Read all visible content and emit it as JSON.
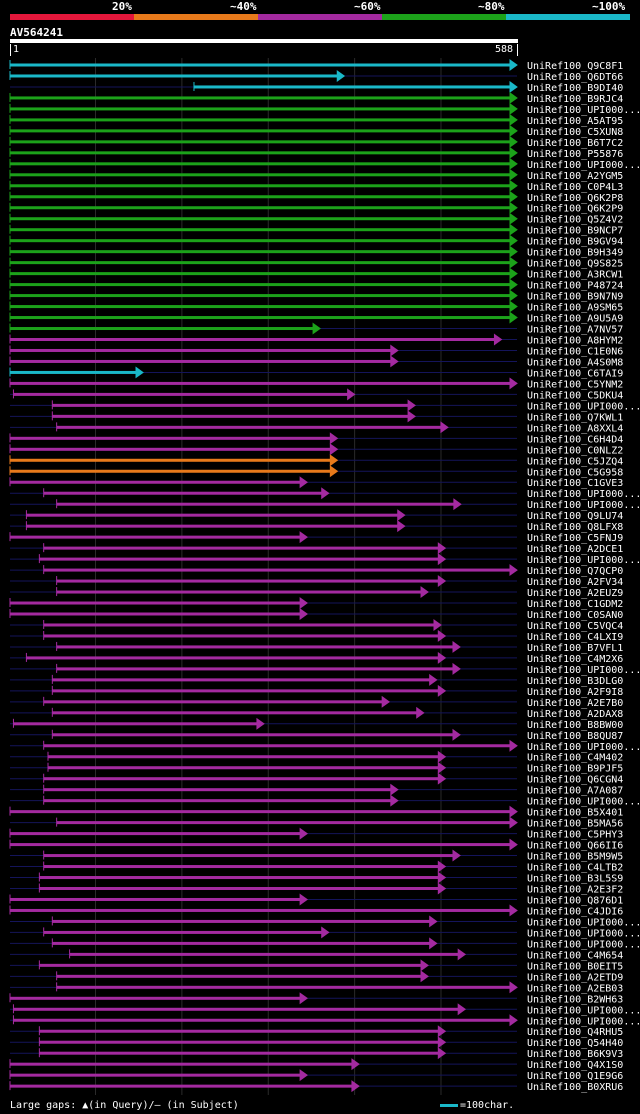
{
  "header": {
    "legend": [
      {
        "label": "20%",
        "color": "#e4173b"
      },
      {
        "label": "~40%",
        "color": "#e87a1b"
      },
      {
        "label": "~60%",
        "color": "#a42aa0"
      },
      {
        "label": "~80%",
        "color": "#1ca21a"
      },
      {
        "label": "~100%",
        "color": "#1ab8c8"
      }
    ],
    "query_name": "AV564241",
    "query_start": "1",
    "query_end": "588"
  },
  "chart_data": {
    "type": "alignment",
    "query_length": 588,
    "hits": [
      {
        "name": "UniRef100_Q9C8F1",
        "start": 1,
        "end": 588,
        "cls": "c"
      },
      {
        "name": "UniRef100_Q6DT66",
        "start": 1,
        "end": 388,
        "cls": "c"
      },
      {
        "name": "UniRef100_B9DI40",
        "start": 214,
        "end": 588,
        "cls": "c"
      },
      {
        "name": "UniRef100_B9RJC4",
        "start": 1,
        "end": 588,
        "cls": "g"
      },
      {
        "name": "UniRef100_UPI000...",
        "start": 1,
        "end": 588,
        "cls": "g"
      },
      {
        "name": "UniRef100_A5AT95",
        "start": 1,
        "end": 588,
        "cls": "g"
      },
      {
        "name": "UniRef100_C5XUN8",
        "start": 1,
        "end": 588,
        "cls": "g"
      },
      {
        "name": "UniRef100_B6T7C2",
        "start": 1,
        "end": 588,
        "cls": "g"
      },
      {
        "name": "UniRef100_P55876",
        "start": 1,
        "end": 588,
        "cls": "g"
      },
      {
        "name": "UniRef100_UPI000...",
        "start": 1,
        "end": 588,
        "cls": "g"
      },
      {
        "name": "UniRef100_A2YGM5",
        "start": 1,
        "end": 588,
        "cls": "g"
      },
      {
        "name": "UniRef100_C0P4L3",
        "start": 1,
        "end": 588,
        "cls": "g"
      },
      {
        "name": "UniRef100_Q6K2P8",
        "start": 1,
        "end": 588,
        "cls": "g"
      },
      {
        "name": "UniRef100_Q6K2P9",
        "start": 1,
        "end": 588,
        "cls": "g"
      },
      {
        "name": "UniRef100_Q5Z4V2",
        "start": 1,
        "end": 588,
        "cls": "g"
      },
      {
        "name": "UniRef100_B9NCP7",
        "start": 1,
        "end": 588,
        "cls": "g"
      },
      {
        "name": "UniRef100_B9GV94",
        "start": 1,
        "end": 588,
        "cls": "g"
      },
      {
        "name": "UniRef100_B9H349",
        "start": 1,
        "end": 588,
        "cls": "g"
      },
      {
        "name": "UniRef100_Q9S825",
        "start": 1,
        "end": 588,
        "cls": "g"
      },
      {
        "name": "UniRef100_A3RCW1",
        "start": 1,
        "end": 588,
        "cls": "g"
      },
      {
        "name": "UniRef100_P48724",
        "start": 1,
        "end": 588,
        "cls": "g"
      },
      {
        "name": "UniRef100_B9N7N9",
        "start": 1,
        "end": 588,
        "cls": "g"
      },
      {
        "name": "UniRef100_A9SM65",
        "start": 1,
        "end": 588,
        "cls": "g"
      },
      {
        "name": "UniRef100_A9U5A9",
        "start": 1,
        "end": 588,
        "cls": "g"
      },
      {
        "name": "UniRef100_A7NV57",
        "start": 1,
        "end": 360,
        "cls": "g"
      },
      {
        "name": "UniRef100_A8HYM2",
        "start": 1,
        "end": 570,
        "cls": "m"
      },
      {
        "name": "UniRef100_C1E0N6",
        "start": 1,
        "end": 450,
        "cls": "m"
      },
      {
        "name": "UniRef100_A4S0M8",
        "start": 1,
        "end": 450,
        "cls": "m"
      },
      {
        "name": "UniRef100_C6TAI9",
        "start": 1,
        "end": 155,
        "cls": "c"
      },
      {
        "name": "UniRef100_C5YNM2",
        "start": 1,
        "end": 588,
        "cls": "m"
      },
      {
        "name": "UniRef100_C5DKU4",
        "start": 5,
        "end": 400,
        "cls": "m"
      },
      {
        "name": "UniRef100_UPI000...",
        "start": 50,
        "end": 470,
        "cls": "m"
      },
      {
        "name": "UniRef100_Q7KWL1",
        "start": 50,
        "end": 470,
        "cls": "m"
      },
      {
        "name": "UniRef100_A8XXL4",
        "start": 55,
        "end": 508,
        "cls": "m"
      },
      {
        "name": "UniRef100_C6H4D4",
        "start": 1,
        "end": 380,
        "cls": "m"
      },
      {
        "name": "UniRef100_C0NLZ2",
        "start": 1,
        "end": 380,
        "cls": "m"
      },
      {
        "name": "UniRef100_C5JZQ4",
        "start": 1,
        "end": 380,
        "cls": "o"
      },
      {
        "name": "UniRef100_C5G958",
        "start": 1,
        "end": 380,
        "cls": "o"
      },
      {
        "name": "UniRef100_C1GVE3",
        "start": 1,
        "end": 345,
        "cls": "m"
      },
      {
        "name": "UniRef100_UPI000...",
        "start": 40,
        "end": 370,
        "cls": "m"
      },
      {
        "name": "UniRef100_UPI000...",
        "start": 55,
        "end": 523,
        "cls": "m"
      },
      {
        "name": "UniRef100_Q9LU74",
        "start": 20,
        "end": 458,
        "cls": "m"
      },
      {
        "name": "UniRef100_Q8LFX8",
        "start": 20,
        "end": 458,
        "cls": "m"
      },
      {
        "name": "UniRef100_C5FNJ9",
        "start": 1,
        "end": 345,
        "cls": "m"
      },
      {
        "name": "UniRef100_A2DCE1",
        "start": 40,
        "end": 505,
        "cls": "m"
      },
      {
        "name": "UniRef100_UPI000...",
        "start": 35,
        "end": 505,
        "cls": "m"
      },
      {
        "name": "UniRef100_Q7QCP0",
        "start": 40,
        "end": 588,
        "cls": "m"
      },
      {
        "name": "UniRef100_A2FV34",
        "start": 55,
        "end": 505,
        "cls": "m"
      },
      {
        "name": "UniRef100_A2EUZ9",
        "start": 55,
        "end": 485,
        "cls": "m"
      },
      {
        "name": "UniRef100_C1GDM2",
        "start": 1,
        "end": 345,
        "cls": "m"
      },
      {
        "name": "UniRef100_C0SAN0",
        "start": 1,
        "end": 345,
        "cls": "m"
      },
      {
        "name": "UniRef100_C5VQC4",
        "start": 40,
        "end": 500,
        "cls": "m"
      },
      {
        "name": "UniRef100_C4LXI9",
        "start": 40,
        "end": 505,
        "cls": "m"
      },
      {
        "name": "UniRef100_B7VFL1",
        "start": 55,
        "end": 522,
        "cls": "m"
      },
      {
        "name": "UniRef100_C4M2X6",
        "start": 20,
        "end": 505,
        "cls": "m"
      },
      {
        "name": "UniRef100_UPI000...",
        "start": 55,
        "end": 522,
        "cls": "m"
      },
      {
        "name": "UniRef100_B3DLG0",
        "start": 50,
        "end": 495,
        "cls": "m"
      },
      {
        "name": "UniRef100_A2F9I8",
        "start": 50,
        "end": 505,
        "cls": "m"
      },
      {
        "name": "UniRef100_A2E7B0",
        "start": 40,
        "end": 440,
        "cls": "m"
      },
      {
        "name": "UniRef100_A2DAX8",
        "start": 50,
        "end": 480,
        "cls": "m"
      },
      {
        "name": "UniRef100_B8BW00",
        "start": 5,
        "end": 295,
        "cls": "m"
      },
      {
        "name": "UniRef100_B8QU87",
        "start": 50,
        "end": 522,
        "cls": "m"
      },
      {
        "name": "UniRef100_UPI000...",
        "start": 40,
        "end": 588,
        "cls": "m"
      },
      {
        "name": "UniRef100_C4M402",
        "start": 45,
        "end": 505,
        "cls": "m"
      },
      {
        "name": "UniRef100_B9PJF5",
        "start": 45,
        "end": 505,
        "cls": "m"
      },
      {
        "name": "UniRef100_Q6CGN4",
        "start": 40,
        "end": 505,
        "cls": "m"
      },
      {
        "name": "UniRef100_A7A087",
        "start": 40,
        "end": 450,
        "cls": "m"
      },
      {
        "name": "UniRef100_UPI000...",
        "start": 40,
        "end": 450,
        "cls": "m"
      },
      {
        "name": "UniRef100_B5X401",
        "start": 1,
        "end": 588,
        "cls": "m"
      },
      {
        "name": "UniRef100_B5MA56",
        "start": 55,
        "end": 588,
        "cls": "m"
      },
      {
        "name": "UniRef100_C5PHY3",
        "start": 1,
        "end": 345,
        "cls": "m"
      },
      {
        "name": "UniRef100_Q66II6",
        "start": 1,
        "end": 588,
        "cls": "m"
      },
      {
        "name": "UniRef100_B5M9W5",
        "start": 40,
        "end": 522,
        "cls": "m"
      },
      {
        "name": "UniRef100_C4LTB2",
        "start": 40,
        "end": 505,
        "cls": "m"
      },
      {
        "name": "UniRef100_B3L5S9",
        "start": 35,
        "end": 505,
        "cls": "m"
      },
      {
        "name": "UniRef100_A2E3F2",
        "start": 35,
        "end": 505,
        "cls": "m"
      },
      {
        "name": "UniRef100_Q876D1",
        "start": 1,
        "end": 345,
        "cls": "m"
      },
      {
        "name": "UniRef100_C4JDI6",
        "start": 1,
        "end": 588,
        "cls": "m"
      },
      {
        "name": "UniRef100_UPI000...",
        "start": 50,
        "end": 495,
        "cls": "m"
      },
      {
        "name": "UniRef100_UPI000...",
        "start": 40,
        "end": 370,
        "cls": "m"
      },
      {
        "name": "UniRef100_UPI000...",
        "start": 50,
        "end": 495,
        "cls": "m"
      },
      {
        "name": "UniRef100_C4M654",
        "start": 70,
        "end": 528,
        "cls": "m"
      },
      {
        "name": "UniRef100_B0EIT5",
        "start": 35,
        "end": 485,
        "cls": "m"
      },
      {
        "name": "UniRef100_A2ETD9",
        "start": 55,
        "end": 485,
        "cls": "m"
      },
      {
        "name": "UniRef100_A2EB03",
        "start": 55,
        "end": 588,
        "cls": "m"
      },
      {
        "name": "UniRef100_B2WH63",
        "start": 1,
        "end": 345,
        "cls": "m"
      },
      {
        "name": "UniRef100_UPI000...",
        "start": 5,
        "end": 528,
        "cls": "m"
      },
      {
        "name": "UniRef100_UPI000...",
        "start": 5,
        "end": 588,
        "cls": "m"
      },
      {
        "name": "UniRef100_Q4RHU5",
        "start": 35,
        "end": 505,
        "cls": "m"
      },
      {
        "name": "UniRef100_Q54H40",
        "start": 35,
        "end": 505,
        "cls": "m"
      },
      {
        "name": "UniRef100_B6K9V3",
        "start": 35,
        "end": 505,
        "cls": "m"
      },
      {
        "name": "UniRef100_Q4X1S0",
        "start": 1,
        "end": 405,
        "cls": "m"
      },
      {
        "name": "UniRef100_Q1E9G6",
        "start": 1,
        "end": 345,
        "cls": "m"
      },
      {
        "name": "UniRef100_B0XRU6",
        "start": 1,
        "end": 405,
        "cls": "m"
      }
    ]
  },
  "footer": {
    "gaps_text": "Large gaps: ▲(in Query)/— (in Subject)",
    "scale_text": "=100char."
  },
  "colors": {
    "c": "#1ab8c8",
    "g": "#1ca21a",
    "m": "#a42aa0",
    "o": "#e87a1b",
    "grid": "#2a2a2a",
    "label": "#ffffff",
    "faint": "#14145a"
  }
}
